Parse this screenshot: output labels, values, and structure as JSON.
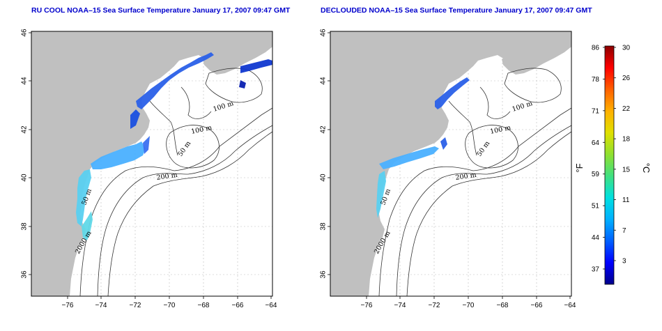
{
  "panels": [
    {
      "id": "left",
      "title": "RU COOL NOAA–15 Sea Surface Temperature January 17, 2007 09:47 GMT",
      "contour_labels": [
        "100 m",
        "100 m",
        "50 m",
        "200 m",
        "50 m",
        "2000 m"
      ]
    },
    {
      "id": "right",
      "title": "DECLOUDED NOAA–15 Sea Surface Temperature January 17, 2007 09:47 GMT",
      "contour_labels": [
        "100 m",
        "100 m",
        "50 m",
        "200 m",
        "50 m",
        "2000 m"
      ]
    }
  ],
  "axes": {
    "x_ticks": [
      "−76",
      "−74",
      "−72",
      "−70",
      "−68",
      "−66",
      "−64"
    ],
    "y_ticks": [
      "36",
      "38",
      "40",
      "42",
      "44",
      "46"
    ]
  },
  "colorbar": {
    "f_ticks": [
      "86",
      "78",
      "71",
      "64",
      "59",
      "51",
      "44",
      "37"
    ],
    "c_ticks": [
      "30",
      "26",
      "22",
      "18",
      "15",
      "11",
      "7",
      "3"
    ],
    "f_unit": "°F",
    "c_unit": "°C",
    "colors": [
      "#00008b",
      "#0000ff",
      "#0060ff",
      "#00b0ff",
      "#00e0e0",
      "#40e080",
      "#90e030",
      "#e0e000",
      "#ffb000",
      "#ff6000",
      "#ff0000",
      "#8b0000"
    ]
  },
  "colors": {
    "land": "#c0c0c0",
    "contour": "#333333",
    "grid": "#bbbbbb"
  }
}
